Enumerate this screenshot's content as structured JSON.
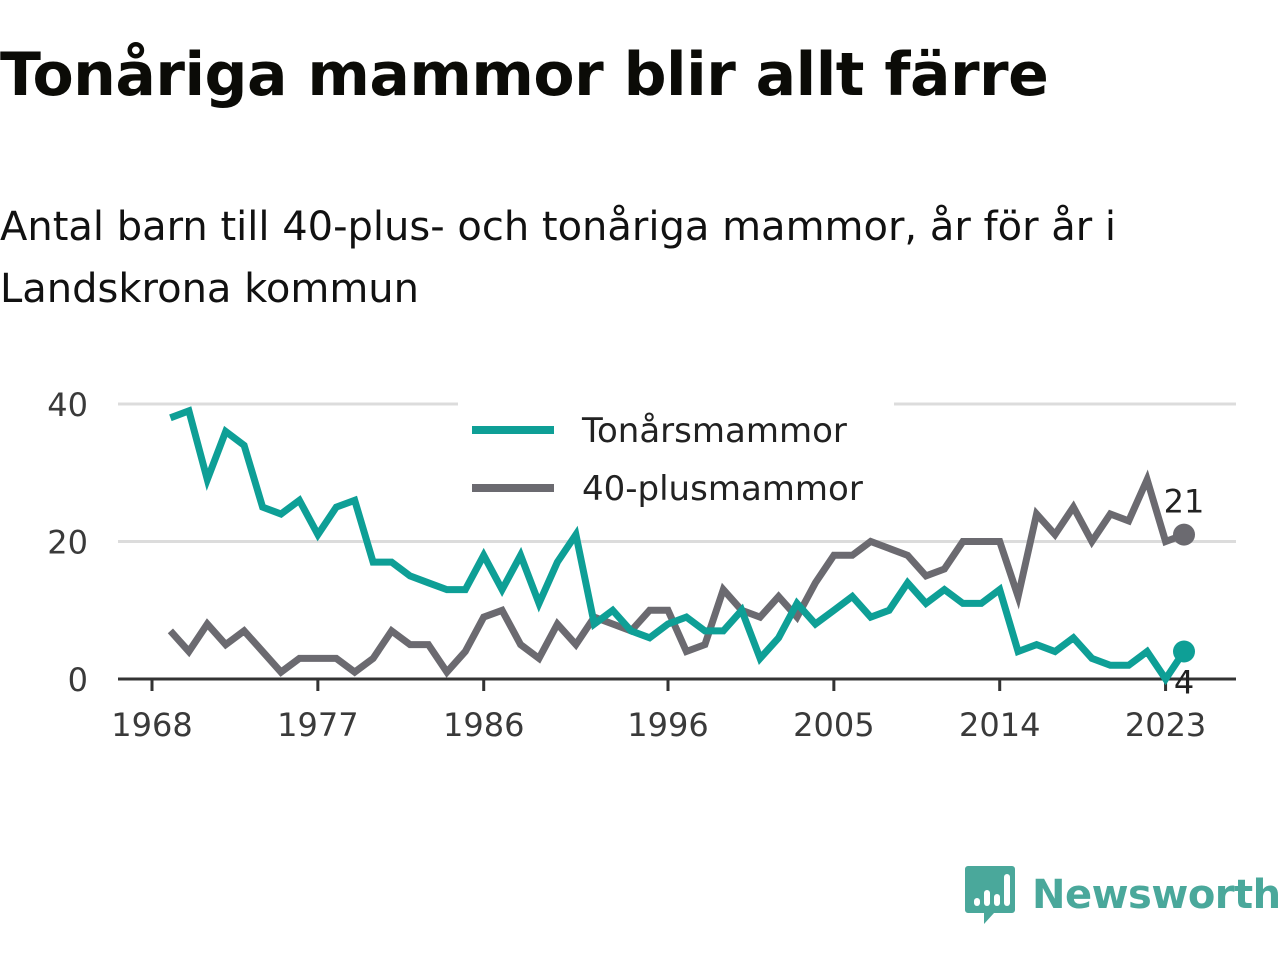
{
  "title": "Tonåriga mammor blir allt färre",
  "subtitle": "Antal barn till 40-plus- och tonåriga mammor, år för år i Landskrona kommun",
  "brand": {
    "name": "Newsworthy"
  },
  "colors": {
    "teal": "#0e9f96",
    "gray": "#6b6a70",
    "grid": "#dcdcdc",
    "axis": "#333333"
  },
  "chart_data": {
    "type": "line",
    "x": [
      1969,
      1970,
      1971,
      1972,
      1973,
      1974,
      1975,
      1976,
      1977,
      1978,
      1979,
      1980,
      1981,
      1982,
      1983,
      1984,
      1985,
      1986,
      1987,
      1988,
      1989,
      1990,
      1991,
      1992,
      1993,
      1994,
      1995,
      1996,
      1997,
      1998,
      1999,
      2000,
      2001,
      2002,
      2003,
      2004,
      2005,
      2006,
      2007,
      2008,
      2009,
      2010,
      2011,
      2012,
      2013,
      2014,
      2015,
      2016,
      2017,
      2018,
      2019,
      2020,
      2021,
      2022,
      2023,
      2024
    ],
    "series": [
      {
        "name": "Tonårsmammor",
        "color": "#0e9f96",
        "values": [
          38,
          39,
          29,
          36,
          34,
          25,
          24,
          26,
          21,
          25,
          26,
          17,
          17,
          15,
          14,
          13,
          13,
          18,
          13,
          18,
          11,
          17,
          21,
          8,
          10,
          7,
          6,
          8,
          9,
          7,
          7,
          10,
          3,
          6,
          11,
          8,
          10,
          12,
          9,
          10,
          14,
          11,
          13,
          11,
          11,
          13,
          4,
          5,
          4,
          6,
          3,
          2,
          2,
          4,
          0,
          4
        ]
      },
      {
        "name": "40-plusmammor",
        "color": "#6b6a70",
        "values": [
          7,
          4,
          8,
          5,
          7,
          4,
          1,
          3,
          3,
          3,
          1,
          3,
          7,
          5,
          5,
          1,
          4,
          9,
          10,
          5,
          3,
          8,
          5,
          9,
          8,
          7,
          10,
          10,
          4,
          5,
          13,
          10,
          9,
          12,
          9,
          14,
          18,
          18,
          20,
          19,
          18,
          15,
          16,
          20,
          20,
          20,
          12,
          24,
          21,
          25,
          20,
          24,
          23,
          29,
          20,
          21
        ]
      }
    ],
    "xticks": [
      1968,
      1977,
      1986,
      1996,
      2005,
      2014,
      2023
    ],
    "yticks": [
      0,
      20,
      40
    ],
    "xlim": [
      1968,
      2025
    ],
    "ylim": [
      0,
      40
    ],
    "end_labels": [
      {
        "series": "40-plusmammor",
        "text": "21"
      },
      {
        "series": "Tonårsmammor",
        "text": "4"
      }
    ],
    "legend_position": "top-center",
    "grid": "horizontal"
  }
}
